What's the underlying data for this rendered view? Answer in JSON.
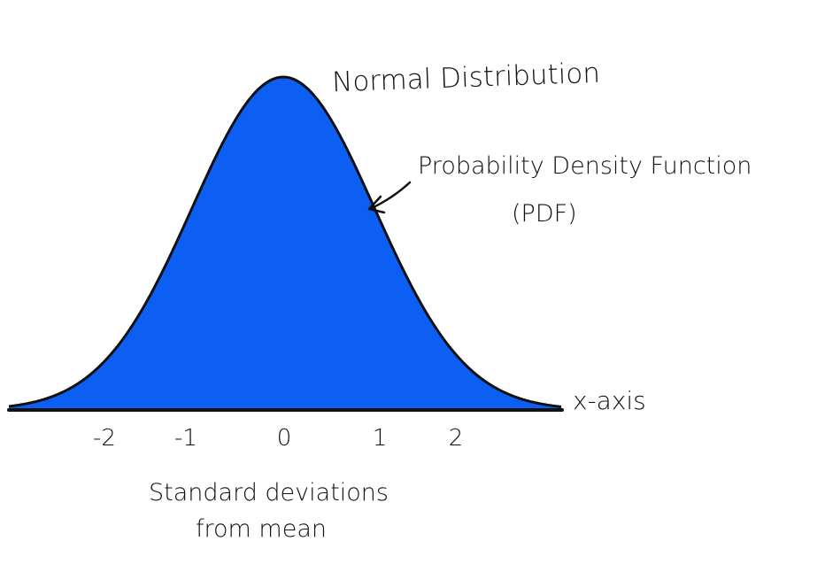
{
  "title": "Normal Distribution",
  "curve_label": {
    "line1": "Probability Density Function",
    "line2": "(PDF)"
  },
  "x_axis_label": "x-axis",
  "x_description": {
    "line1": "Standard deviations",
    "line2": "from mean"
  },
  "ticks": [
    "-2",
    "-1",
    "0",
    "1",
    "2"
  ],
  "colors": {
    "fill": "#0c5ff2",
    "outline": "#111111",
    "background": "#ffffff"
  }
}
